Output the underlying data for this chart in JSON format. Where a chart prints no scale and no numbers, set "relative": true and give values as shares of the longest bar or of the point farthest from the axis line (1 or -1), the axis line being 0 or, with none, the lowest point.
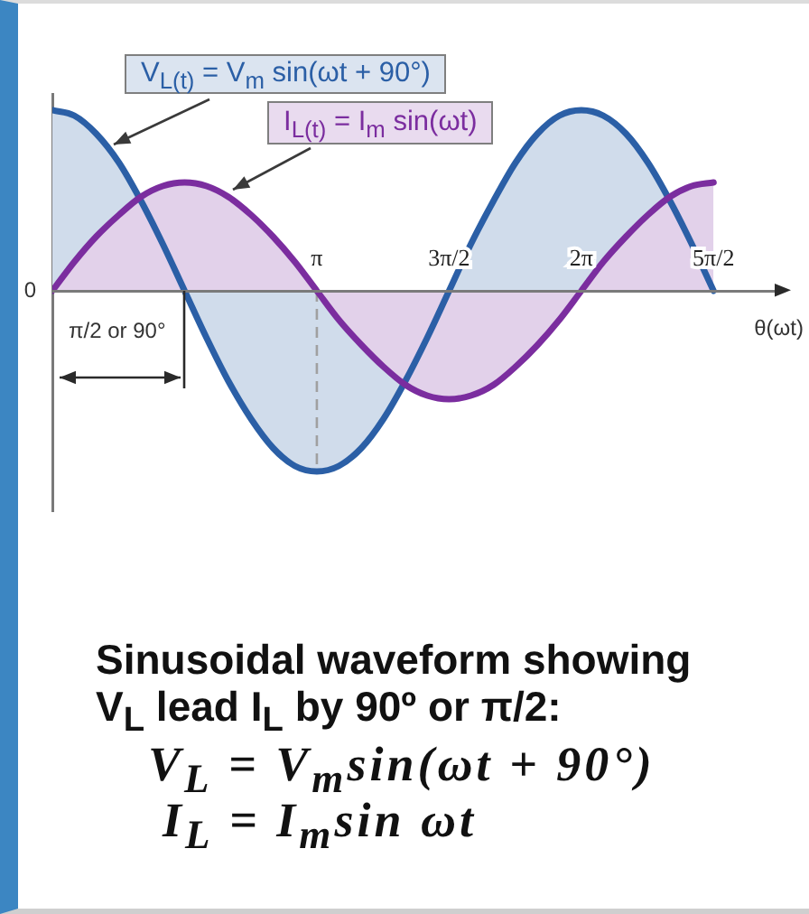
{
  "chart_data": {
    "type": "area",
    "relative": true,
    "xlabel": "θ(ωt)",
    "x": [
      0,
      0.26,
      0.52,
      0.79,
      1.05,
      1.31,
      1.57,
      1.83,
      2.09,
      2.36,
      2.62,
      2.88,
      3.14,
      3.4,
      3.67,
      3.93,
      4.19,
      4.45,
      4.71,
      4.97,
      5.24,
      5.5,
      5.76,
      6.02,
      6.28,
      6.54,
      6.81,
      7.07,
      7.33,
      7.59,
      7.85
    ],
    "xlim": [
      0,
      8.64
    ],
    "xticks": [
      {
        "value": 3.14,
        "label": "π"
      },
      {
        "value": 4.71,
        "label": "3π/2"
      },
      {
        "value": 6.28,
        "label": "2π"
      },
      {
        "value": 7.85,
        "label": "5π/2"
      }
    ],
    "series": [
      {
        "name": "V$_{L(t)}$ = V$_{m}$ sin(ωt + 90°)",
        "color": "#2b5fa6",
        "values": [
          1,
          0.97,
          0.87,
          0.71,
          0.5,
          0.26,
          0,
          -0.26,
          -0.5,
          -0.71,
          -0.87,
          -0.97,
          -1,
          -0.97,
          -0.87,
          -0.71,
          -0.5,
          -0.26,
          0,
          0.26,
          0.5,
          0.71,
          0.87,
          0.97,
          1,
          0.97,
          0.87,
          0.71,
          0.5,
          0.26,
          0
        ]
      },
      {
        "name": "I$_{L(t)}$ = I$_{m}$ sin(ωt)",
        "color": "#7b2d9f",
        "values": [
          0,
          0.16,
          0.3,
          0.42,
          0.52,
          0.58,
          0.6,
          0.58,
          0.52,
          0.42,
          0.3,
          0.16,
          0,
          -0.16,
          -0.3,
          -0.42,
          -0.52,
          -0.58,
          -0.6,
          -0.58,
          -0.52,
          -0.42,
          -0.3,
          -0.16,
          0,
          0.16,
          0.3,
          0.42,
          0.52,
          0.58,
          0.6
        ]
      }
    ],
    "ref_lines": [
      {
        "axis": "x",
        "value": 3.14,
        "color": "#a0a0a0",
        "line_style": "dashed"
      }
    ],
    "annotations": [
      {
        "text": "0",
        "x": 0,
        "y": 0
      },
      "π/2 or 90°",
      "Sinusoidal waveform showing V$_{L}$ lead I$_{L}$ by 90º or π/2:",
      "V$_{L}$ = V$_{m}$sin(ωt + 90°)",
      "I$_{L}$ = I$_{m}$sin ωt"
    ]
  }
}
